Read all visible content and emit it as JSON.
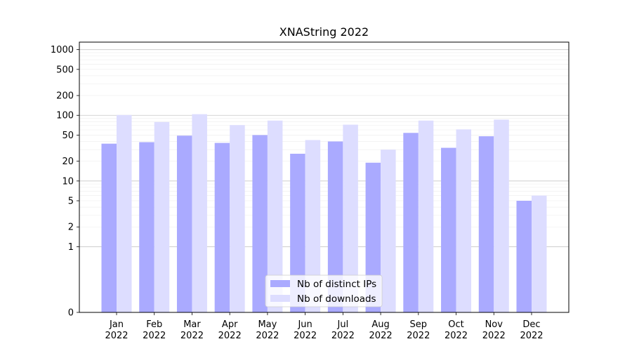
{
  "chart_data": {
    "type": "bar",
    "title": "XNAString 2022",
    "xlabel": "",
    "ylabel": "",
    "y_scale": "symlog",
    "ylim": [
      0,
      1300
    ],
    "y_ticks": [
      0,
      1,
      2,
      5,
      10,
      20,
      50,
      100,
      200,
      500,
      1000
    ],
    "y_tick_labels": [
      "0",
      "1",
      "2",
      "5",
      "10",
      "20",
      "50",
      "100",
      "200",
      "500",
      "1000"
    ],
    "grid": true,
    "legend_position": "bottom-center",
    "categories": [
      "Jan\n2022",
      "Feb\n2022",
      "Mar\n2022",
      "Apr\n2022",
      "May\n2022",
      "Jun\n2022",
      "Jul\n2022",
      "Aug\n2022",
      "Sep\n2022",
      "Oct\n2022",
      "Nov\n2022",
      "Dec\n2022"
    ],
    "series": [
      {
        "name": "Nb of distinct IPs",
        "color": "#aaaaff",
        "values": [
          37,
          39,
          49,
          38,
          50,
          26,
          40,
          19,
          54,
          32,
          48,
          5
        ]
      },
      {
        "name": "Nb of downloads",
        "color": "#ddddff",
        "values": [
          101,
          79,
          104,
          71,
          83,
          42,
          72,
          30,
          83,
          61,
          86,
          6
        ]
      }
    ]
  }
}
